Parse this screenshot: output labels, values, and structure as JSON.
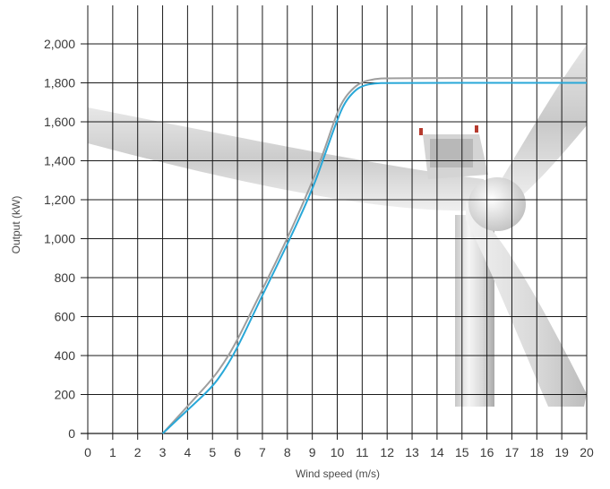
{
  "chart_data": {
    "type": "line",
    "xlabel": "Wind speed (m/s)",
    "ylabel": "Output (kW)",
    "xlim": [
      0,
      20
    ],
    "ylim": [
      0,
      2000
    ],
    "x_ticks": [
      "0",
      "1",
      "2",
      "3",
      "4",
      "5",
      "6",
      "7",
      "8",
      "9",
      "10",
      "11",
      "12",
      "13",
      "14",
      "15",
      "16",
      "17",
      "18",
      "19",
      "20"
    ],
    "y_ticks": [
      "0",
      "200",
      "400",
      "600",
      "800",
      "1,000",
      "1,200",
      "1,400",
      "1,600",
      "1,800",
      "2,000"
    ],
    "y_tick_values": [
      0,
      200,
      400,
      600,
      800,
      1000,
      1200,
      1400,
      1600,
      1800,
      2000
    ],
    "grid": true,
    "background_image": "wind-turbine",
    "series": [
      {
        "color": "#9e9e9e",
        "x": [
          3,
          4,
          5,
          5.5,
          6,
          7,
          8,
          9,
          9.5,
          10,
          10.3,
          10.7,
          11,
          11.5,
          12,
          20
        ],
        "y": [
          0,
          140,
          280,
          370,
          480,
          740,
          1000,
          1290,
          1460,
          1650,
          1725,
          1780,
          1805,
          1820,
          1825,
          1825
        ]
      },
      {
        "color": "#29a8d8",
        "x": [
          3,
          4,
          5,
          5.5,
          6,
          7,
          8,
          9,
          9.5,
          10,
          10.3,
          10.7,
          11,
          11.5,
          12,
          20
        ],
        "y": [
          0,
          120,
          240,
          330,
          440,
          710,
          970,
          1250,
          1430,
          1610,
          1700,
          1760,
          1785,
          1798,
          1800,
          1800
        ]
      }
    ]
  }
}
